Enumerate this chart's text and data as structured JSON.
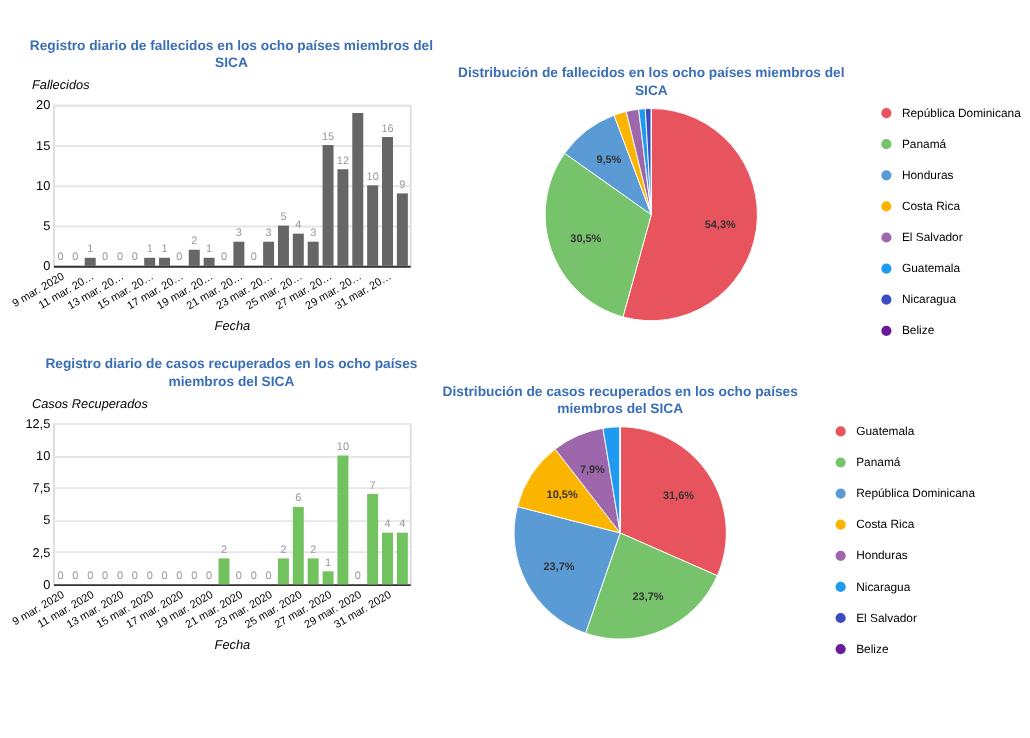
{
  "chart_data": [
    {
      "type": "bar",
      "title": "Registro diario de fallecidos en los ocho países miembros del SICA",
      "xlabel": "Fecha",
      "ylabel": "Fallecidos",
      "categories": [
        "9 mar. 2020",
        null,
        "11 mar. 20…",
        null,
        "13 mar. 20…",
        null,
        "15 mar. 20…",
        null,
        "17 mar. 20…",
        null,
        "19 mar. 20…",
        null,
        "21 mar. 20…",
        null,
        "23 mar. 20…",
        null,
        "25 mar. 20…",
        null,
        "27 mar. 20…",
        null,
        "29 mar. 20…",
        null,
        "31 mar. 20…",
        null
      ],
      "values": [
        0,
        0,
        1,
        0,
        0,
        0,
        1,
        1,
        0,
        2,
        1,
        0,
        3,
        0,
        3,
        5,
        4,
        3,
        15,
        12,
        19,
        10,
        16,
        9
      ],
      "value_labels": [
        "0",
        "0",
        "1",
        "0",
        "0",
        "0",
        "1",
        "1",
        "0",
        "2",
        "1",
        "0",
        "3",
        "0",
        "3",
        "5",
        "4",
        "3",
        "15",
        "12",
        null,
        "10",
        "16",
        "9"
      ],
      "color": "#666666",
      "ylim": [
        0,
        20
      ],
      "yticks": [
        0,
        5,
        10,
        15,
        20
      ],
      "grid": "y"
    },
    {
      "type": "pie",
      "title": "Distribución de fallecidos en los ocho países miembros del SICA",
      "categories": [
        "República Dominicana",
        "Panamá",
        "Honduras",
        "Costa Rica",
        "El Salvador",
        "Guatemala",
        "Nicaragua",
        "Belize"
      ],
      "values": [
        54.3,
        30.5,
        9.5,
        1.9,
        1.9,
        1.0,
        0.9,
        0
      ],
      "value_labels": [
        "54,3%",
        "30,5%",
        "9,5%",
        null,
        null,
        null,
        null,
        null
      ],
      "colors": [
        "#e8545e",
        "#77c36b",
        "#5b9bd5",
        "#fbb400",
        "#9e67ab",
        "#1e9bf0",
        "#3b4cc0",
        "#6a1b9a"
      ],
      "legend": "right"
    },
    {
      "type": "bar",
      "title": "Registro diario de casos recuperados en los ocho países miembros del SICA",
      "xlabel": "Fecha",
      "ylabel": "Casos Recuperados",
      "categories": [
        "9 mar. 2020",
        null,
        "11 mar. 2020",
        null,
        "13 mar. 2020",
        null,
        "15 mar. 2020",
        null,
        "17 mar. 2020",
        null,
        "19 mar. 2020",
        null,
        "21 mar. 2020",
        null,
        "23 mar. 2020",
        null,
        "25 mar. 2020",
        null,
        "27 mar. 2020",
        null,
        "29 mar. 2020",
        null,
        "31 mar. 2020",
        null
      ],
      "values": [
        0,
        0,
        0,
        0,
        0,
        0,
        0,
        0,
        0,
        0,
        0,
        2,
        0,
        0,
        0,
        2,
        6,
        2,
        1,
        10,
        0,
        7,
        4,
        4
      ],
      "data_labels": true,
      "color": "#72c35f",
      "ylim": [
        0,
        12.5
      ],
      "yticks": [
        0,
        {
          "value": 2.5,
          "label": "2,5"
        },
        5,
        {
          "value": 7.5,
          "label": "7,5"
        },
        10,
        {
          "value": 12.5,
          "label": "12,5"
        }
      ],
      "grid": "y"
    },
    {
      "type": "pie",
      "title": "Distribución de casos recuperados en los ocho países miembros del SICA",
      "categories": [
        "Guatemala",
        "Panamá",
        "República Dominicana",
        "Costa Rica",
        "Honduras",
        "Nicaragua",
        "El Salvador",
        "Belize"
      ],
      "values": [
        31.6,
        23.7,
        23.7,
        10.5,
        7.9,
        2.6,
        0,
        0
      ],
      "value_labels": [
        "31,6%",
        "23,7%",
        "23,7%",
        "10,5%",
        "7,9%",
        null,
        null,
        null
      ],
      "colors": [
        "#e8545e",
        "#77c36b",
        "#5b9bd5",
        "#fbb400",
        "#9e67ab",
        "#1e9bf0",
        "#3b4cc0",
        "#6a1b9a"
      ],
      "legend": "right"
    }
  ]
}
